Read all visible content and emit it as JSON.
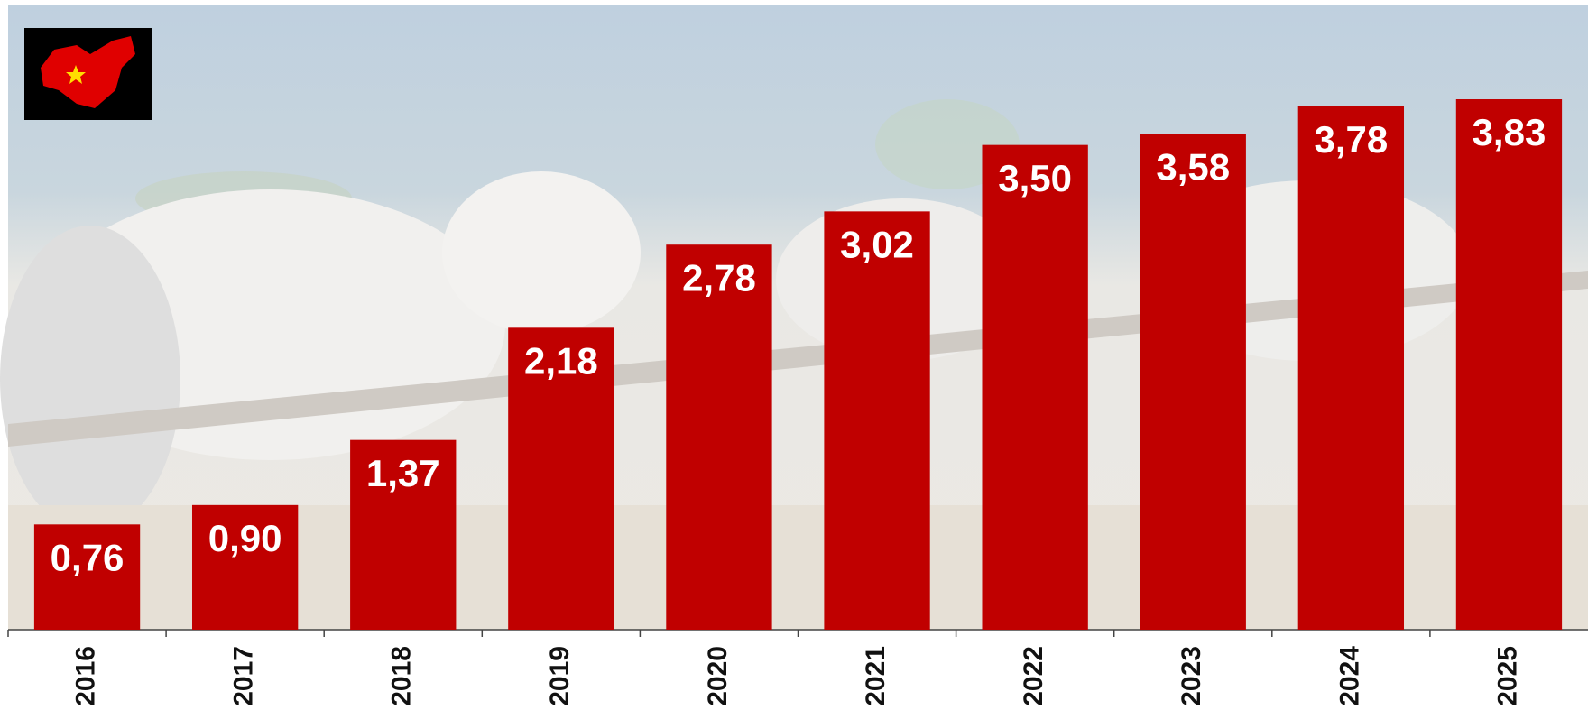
{
  "chart_data": {
    "type": "bar",
    "categories": [
      "2016",
      "2017",
      "2018",
      "2019",
      "2020",
      "2021",
      "2022",
      "2023",
      "2024",
      "2025"
    ],
    "values": [
      0.76,
      0.9,
      1.37,
      2.18,
      2.78,
      3.02,
      3.5,
      3.58,
      3.78,
      3.83
    ],
    "value_labels": [
      "0,76",
      "0,90",
      "1,37",
      "2,18",
      "2,78",
      "3,02",
      "3,50",
      "3,58",
      "3,78",
      "3,83"
    ],
    "color": "#c00000"
  }
}
